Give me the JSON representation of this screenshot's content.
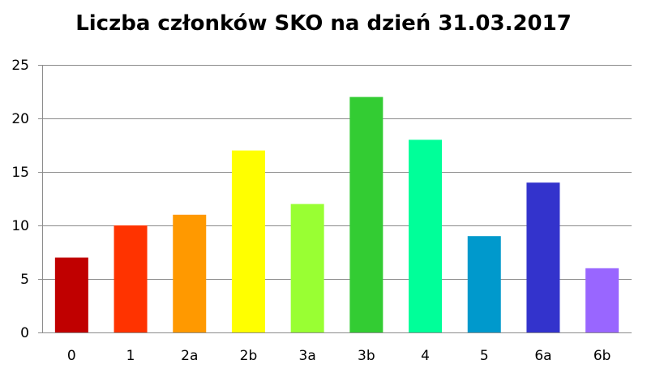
{
  "chart_data": {
    "type": "bar",
    "title": "Liczba członków SKO na dzień 31.03.2017",
    "xlabel": "",
    "ylabel": "",
    "categories": [
      "0",
      "1",
      "2a",
      "2b",
      "3a",
      "3b",
      "4",
      "5",
      "6a",
      "6b"
    ],
    "values": [
      7,
      10,
      11,
      17,
      12,
      22,
      18,
      9,
      14,
      6
    ],
    "colors": [
      "#C00000",
      "#FF3300",
      "#FF9900",
      "#FFFF00",
      "#99FF33",
      "#33CC33",
      "#00FF99",
      "#0099CC",
      "#3333CC",
      "#9966FF"
    ],
    "ylim": [
      0,
      25
    ],
    "yticks": [
      0,
      5,
      10,
      15,
      20,
      25
    ],
    "grid": true,
    "legend": "none"
  }
}
